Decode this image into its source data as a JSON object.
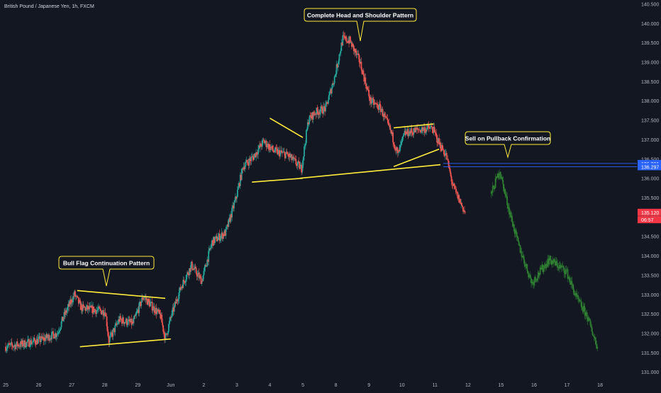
{
  "symbol_title": "British Pound / Japanese Yen, 1h, FXCM",
  "annotations": {
    "bull_flag": "Bull Flag  Continuation Pattern",
    "head_shoulders": "Complete Head and Shoulder Pattern",
    "sell_pullback": "Sell on Pullback Confirmation"
  },
  "y_axis": {
    "ticks": [
      "140.500",
      "140.000",
      "139.500",
      "139.000",
      "138.500",
      "138.000",
      "137.500",
      "137.000",
      "136.500",
      "136.000",
      "135.500",
      "135.000",
      "134.500",
      "134.000",
      "133.500",
      "133.000",
      "132.500",
      "132.000",
      "131.500",
      "131.000"
    ],
    "tick_values": [
      140.5,
      140.0,
      139.5,
      139.0,
      138.5,
      138.0,
      137.5,
      137.0,
      136.5,
      136.0,
      135.5,
      135.0,
      134.5,
      134.0,
      133.5,
      133.0,
      132.5,
      132.0,
      131.5,
      131.0
    ],
    "ylim": [
      130.73,
      140.6
    ]
  },
  "price_labels": [
    {
      "text": "136.381",
      "value": 136.381,
      "bg": "#2962ff"
    },
    {
      "text": "136.297",
      "value": 136.297,
      "bg": "#2962ff"
    },
    {
      "text": "135.120",
      "value": 135.12,
      "bg": "#f23645"
    },
    {
      "text": "06:57",
      "value": 134.93,
      "bg": "#f23645"
    }
  ],
  "x_axis": {
    "labels": [
      "25",
      "26",
      "27",
      "28",
      "29",
      "Jun",
      "2",
      "3",
      "4",
      "5",
      "8",
      "9",
      "10",
      "11",
      "12",
      "15",
      "16",
      "17",
      "18"
    ],
    "label_bars": [
      0,
      48,
      96,
      144,
      192,
      240,
      288,
      336,
      384,
      432,
      480,
      528,
      576,
      624,
      672,
      720,
      768,
      816,
      864
    ]
  },
  "colors": {
    "background": "#131722",
    "up": "#26a69a",
    "down": "#ef5350",
    "projection": "#2e7d32",
    "pattern_line": "#ffeb3b",
    "level_line": "#2962ff",
    "axis_text": "#b2b5be",
    "callout_border": "#ffeb3b"
  },
  "chart_data": {
    "type": "candlestick",
    "series": [
      {
        "name": "",
        "anchors": [
          [
            0,
            131.65
          ],
          [
            25,
            131.72
          ],
          [
            55,
            131.85
          ],
          [
            75,
            132.0
          ],
          [
            85,
            132.45
          ],
          [
            100,
            133.0
          ],
          [
            110,
            132.65
          ],
          [
            130,
            132.6
          ],
          [
            145,
            132.55
          ],
          [
            150,
            131.8
          ],
          [
            165,
            132.35
          ],
          [
            185,
            132.25
          ],
          [
            200,
            132.95
          ],
          [
            225,
            132.45
          ],
          [
            232,
            131.85
          ],
          [
            240,
            132.4
          ],
          [
            255,
            133.2
          ],
          [
            270,
            133.75
          ],
          [
            285,
            133.35
          ],
          [
            300,
            134.35
          ],
          [
            320,
            134.6
          ],
          [
            335,
            135.5
          ],
          [
            345,
            136.3
          ],
          [
            360,
            136.55
          ],
          [
            375,
            136.95
          ],
          [
            390,
            136.7
          ],
          [
            410,
            136.6
          ],
          [
            430,
            136.25
          ],
          [
            440,
            137.5
          ],
          [
            450,
            137.7
          ],
          [
            465,
            137.8
          ],
          [
            478,
            138.6
          ],
          [
            490,
            139.6
          ],
          [
            500,
            139.55
          ],
          [
            515,
            139.0
          ],
          [
            530,
            138.0
          ],
          [
            545,
            137.8
          ],
          [
            560,
            137.2
          ],
          [
            570,
            136.6
          ],
          [
            580,
            137.15
          ],
          [
            600,
            137.25
          ],
          [
            620,
            137.3
          ],
          [
            630,
            136.9
          ],
          [
            640,
            136.6
          ],
          [
            650,
            135.8
          ],
          [
            668,
            135.1
          ]
        ]
      },
      {
        "name": "",
        "anchors": [
          [
            706,
            135.6
          ],
          [
            718,
            136.2
          ],
          [
            730,
            135.3
          ],
          [
            745,
            134.3
          ],
          [
            765,
            133.3
          ],
          [
            790,
            133.9
          ],
          [
            815,
            133.6
          ],
          [
            830,
            132.9
          ],
          [
            845,
            132.45
          ],
          [
            860,
            131.65
          ]
        ]
      }
    ],
    "x_labels": [
      "25",
      "26",
      "27",
      "28",
      "29",
      "Jun",
      "2",
      "3",
      "4",
      "5",
      "8",
      "9",
      "10",
      "11",
      "12",
      "15",
      "16",
      "17",
      "18"
    ]
  },
  "pattern_lines": [
    [
      [
        104,
        133.1
      ],
      [
        232,
        132.9
      ]
    ],
    [
      [
        108,
        131.65
      ],
      [
        240,
        131.85
      ]
    ],
    [
      [
        358,
        135.9
      ],
      [
        432,
        136.0
      ]
    ],
    [
      [
        428,
        136.0
      ],
      [
        632,
        136.35
      ]
    ],
    [
      [
        384,
        137.55
      ],
      [
        432,
        137.05
      ]
    ],
    [
      [
        564,
        137.3
      ],
      [
        622,
        137.4
      ]
    ],
    [
      [
        564,
        136.3
      ],
      [
        630,
        136.75
      ]
    ]
  ]
}
